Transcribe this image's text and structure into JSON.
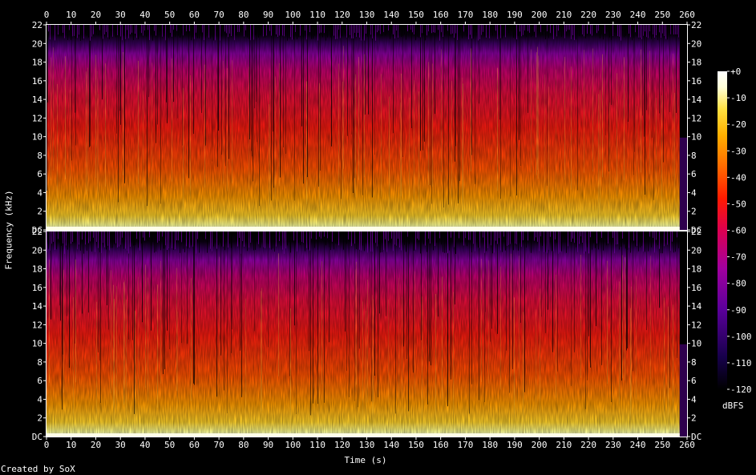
{
  "chart_data": {
    "type": "heatmap",
    "subtype": "spectrogram",
    "xlabel": "Time (s)",
    "ylabel": "Frequency (kHz)",
    "x_ticks": [
      0,
      10,
      20,
      30,
      40,
      50,
      60,
      70,
      80,
      90,
      100,
      110,
      120,
      130,
      140,
      150,
      160,
      170,
      180,
      190,
      200,
      210,
      220,
      230,
      240,
      250,
      260
    ],
    "xlim": [
      0,
      260
    ],
    "y_ticks": [
      "DC",
      "2",
      "4",
      "6",
      "8",
      "10",
      "12",
      "14",
      "16",
      "18",
      "20",
      "22"
    ],
    "ylim": [
      0,
      22
    ],
    "channels": 2,
    "signal_end_s": 257,
    "colorbar": {
      "unit": "dBFS",
      "ticks": [
        "+0",
        "-10",
        "-20",
        "-30",
        "-40",
        "-50",
        "-60",
        "-70",
        "-80",
        "-90",
        "-100",
        "-110",
        "-120"
      ],
      "range": [
        -120,
        0
      ],
      "colors": [
        "#000000",
        "#16004a",
        "#5a009a",
        "#a1009f",
        "#dc0050",
        "#ff1a00",
        "#ff6a00",
        "#ffb000",
        "#ffe040",
        "#ffffd8",
        "#ffffff"
      ]
    },
    "background": "#000000"
  },
  "credit": "Created by SoX"
}
